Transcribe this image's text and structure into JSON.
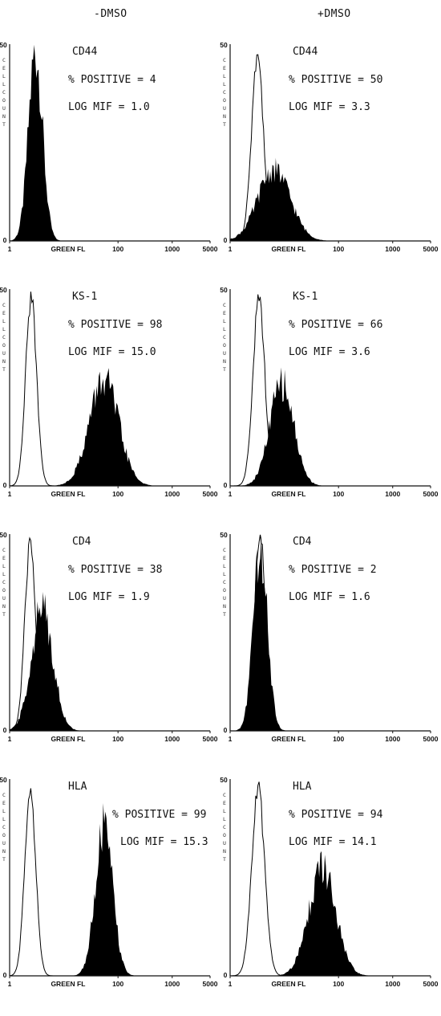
{
  "column_titles": [
    "-DMSO",
    "+DMSO"
  ],
  "x_axis": {
    "label": "GREEN FL",
    "ticks": [
      "1",
      "100",
      "1000",
      "5000"
    ],
    "scale": "log",
    "range": [
      1,
      5000
    ]
  },
  "y_axis": {
    "label": "CELL COUNT",
    "top_tick": "50",
    "bottom_tick": "0",
    "range": [
      0,
      50
    ]
  },
  "colors": {
    "filled_histogram": "#000000",
    "outline_histogram": "#000000",
    "background": "#ffffff"
  },
  "chart_data": [
    {
      "type": "area",
      "column": "-DMSO",
      "row": 1,
      "marker": "CD44",
      "positive_label": "% POSITIVE = 4",
      "mif_label": "LOG MIF = 1.0",
      "series": [
        {
          "style": "filled",
          "peak_x": 3.0,
          "peak_y": 48,
          "width": 0.13
        }
      ]
    },
    {
      "type": "area",
      "column": "+DMSO",
      "row": 1,
      "marker": "CD44",
      "positive_label": "% POSITIVE = 50",
      "mif_label": "LOG MIF = 3.3",
      "series": [
        {
          "style": "outline",
          "peak_x": 3.2,
          "peak_y": 47,
          "width": 0.11
        },
        {
          "style": "filled",
          "peak_x": 6.5,
          "peak_y": 18,
          "width": 0.3
        }
      ]
    },
    {
      "type": "area",
      "column": "-DMSO",
      "row": 2,
      "marker": "KS-1",
      "positive_label": "% POSITIVE = 98",
      "mif_label": "LOG MIF = 15.0",
      "series": [
        {
          "style": "outline",
          "peak_x": 2.5,
          "peak_y": 48,
          "width": 0.1
        },
        {
          "style": "filled",
          "peak_x": 55,
          "peak_y": 27,
          "width": 0.27
        }
      ]
    },
    {
      "type": "area",
      "column": "+DMSO",
      "row": 2,
      "marker": "KS-1",
      "positive_label": "% POSITIVE = 66",
      "mif_label": "LOG MIF = 3.6",
      "series": [
        {
          "style": "outline",
          "peak_x": 3.4,
          "peak_y": 47,
          "width": 0.11
        },
        {
          "style": "filled",
          "peak_x": 9.0,
          "peak_y": 26,
          "width": 0.22
        }
      ]
    },
    {
      "type": "area",
      "column": "-DMSO",
      "row": 3,
      "marker": "CD4",
      "positive_label": "% POSITIVE = 38",
      "mif_label": "LOG MIF = 1.9",
      "series": [
        {
          "style": "outline",
          "peak_x": 2.4,
          "peak_y": 48,
          "width": 0.1
        },
        {
          "style": "filled",
          "peak_x": 4.0,
          "peak_y": 31,
          "width": 0.2
        }
      ]
    },
    {
      "type": "area",
      "column": "+DMSO",
      "row": 3,
      "marker": "CD4",
      "positive_label": "% POSITIVE = 2",
      "mif_label": "LOG MIF = 1.6",
      "series": [
        {
          "style": "outline",
          "peak_x": 3.6,
          "peak_y": 48,
          "width": 0.11
        },
        {
          "style": "filled",
          "peak_x": 3.6,
          "peak_y": 47,
          "width": 0.13
        }
      ]
    },
    {
      "type": "area",
      "column": "-DMSO",
      "row": 4,
      "marker": "HLA",
      "positive_label": "% POSITIVE = 99",
      "mif_label": "LOG MIF = 15.3",
      "series": [
        {
          "style": "outline",
          "peak_x": 2.4,
          "peak_y": 48,
          "width": 0.1
        },
        {
          "style": "filled",
          "peak_x": 55,
          "peak_y": 38,
          "width": 0.16
        }
      ]
    },
    {
      "type": "area",
      "column": "+DMSO",
      "row": 4,
      "marker": "HLA",
      "positive_label": "% POSITIVE = 94",
      "mif_label": "LOG MIF = 14.1",
      "series": [
        {
          "style": "outline",
          "peak_x": 3.3,
          "peak_y": 47,
          "width": 0.12
        },
        {
          "style": "filled",
          "peak_x": 50,
          "peak_y": 27,
          "width": 0.25
        }
      ]
    }
  ]
}
